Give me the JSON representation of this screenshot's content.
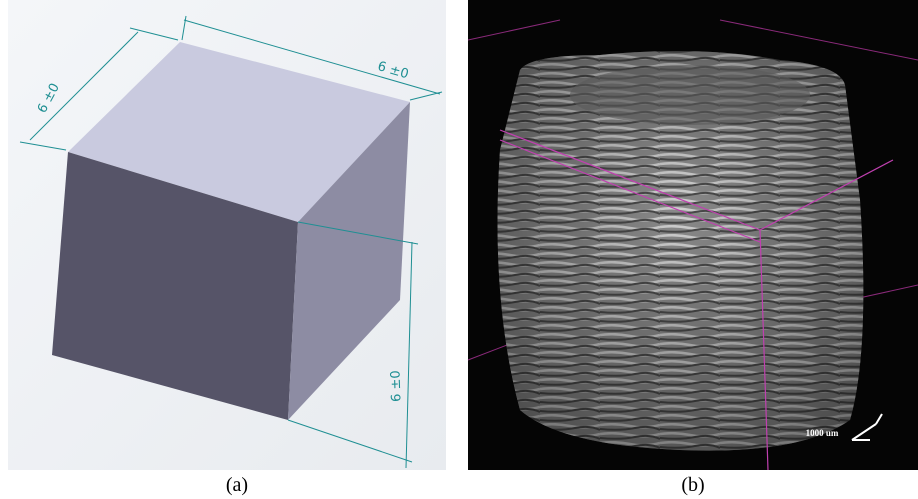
{
  "panels": [
    {
      "dimensions": [
        "6 ±0",
        "6 ±0",
        "6 ±0"
      ],
      "caption": "(a)"
    },
    {
      "scale_label": "1000 um",
      "caption": "(b)"
    }
  ]
}
